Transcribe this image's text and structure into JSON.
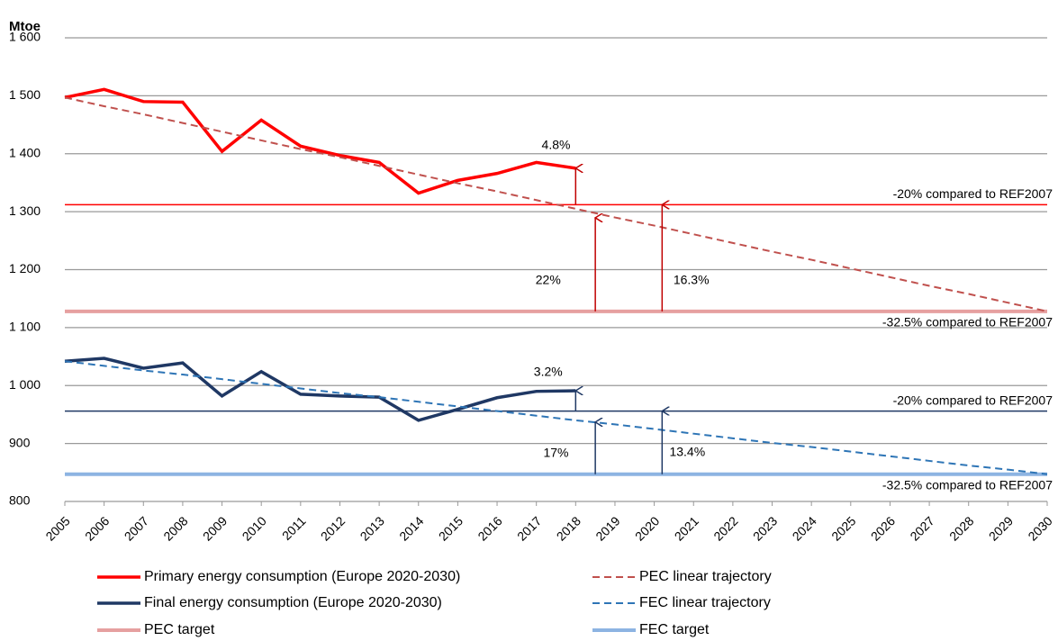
{
  "chart_data": {
    "type": "line",
    "y_label": "Mtoe",
    "categories": [
      "2005",
      "2006",
      "2007",
      "2008",
      "2009",
      "2010",
      "2011",
      "2012",
      "2013",
      "2014",
      "2015",
      "2016",
      "2017",
      "2018",
      "2019",
      "2020",
      "2021",
      "2022",
      "2023",
      "2024",
      "2025",
      "2026",
      "2027",
      "2028",
      "2029",
      "2030"
    ],
    "ylim": [
      800,
      1600
    ],
    "yticks": [
      {
        "value": 1600,
        "label": "1 600"
      },
      {
        "value": 1500,
        "label": "1 500"
      },
      {
        "value": 1400,
        "label": "1 400"
      },
      {
        "value": 1300,
        "label": "1 300"
      },
      {
        "value": 1200,
        "label": "1 200"
      },
      {
        "value": 1100,
        "label": "1 100"
      },
      {
        "value": 1000,
        "label": "1 000"
      },
      900,
      800
    ],
    "grid": true,
    "series": [
      {
        "name": "Primary energy consumption (Europe 2020-2030)",
        "color": "#ff0000",
        "dashed": false,
        "values": [
          1497,
          1511,
          1490,
          1489,
          1404,
          1458,
          1413,
          1397,
          1385,
          1332,
          1354,
          1366,
          1385,
          1375,
          null,
          null,
          null,
          null,
          null,
          null,
          null,
          null,
          null,
          null,
          null,
          null
        ]
      },
      {
        "name": "Final energy consumption (Europe 2020-2030)",
        "color": "#1f3864",
        "dashed": false,
        "values": [
          1042,
          1047,
          1030,
          1039,
          982,
          1024,
          985,
          982,
          980,
          940,
          959,
          979,
          990,
          991,
          null,
          null,
          null,
          null,
          null,
          null,
          null,
          null,
          null,
          null,
          null,
          null
        ]
      },
      {
        "name": "PEC linear trajectory",
        "color": "#c0504d",
        "dashed": true,
        "values": [
          1497,
          1482,
          1468,
          1453,
          1438,
          1423,
          1408,
          1394,
          1379,
          1364,
          1349,
          1335,
          1320,
          1305,
          1290,
          1276,
          1261,
          1246,
          1231,
          1217,
          1202,
          1187,
          1172,
          1158,
          1143,
          1128
        ]
      },
      {
        "name": "FEC linear trajectory",
        "color": "#2e75b6",
        "dashed": true,
        "values": [
          1042,
          1034,
          1026,
          1019,
          1011,
          1003,
          995,
          987,
          980,
          972,
          964,
          956,
          948,
          940,
          933,
          925,
          917,
          909,
          901,
          894,
          886,
          878,
          870,
          862,
          855,
          847
        ]
      }
    ],
    "reference_lines": [
      {
        "name": "PEC target",
        "value": 1128,
        "label": "-32.5% compared to REF2007",
        "color": "#e6a0a0"
      },
      {
        "value": 1312,
        "label": "-20% compared to REF2007",
        "color": "#ff0000"
      },
      {
        "name": "FEC target",
        "value": 847,
        "label": "-32.5% compared to REF2007",
        "color": "#8db4e2"
      },
      {
        "value": 956,
        "label": "-20% compared to REF2007",
        "color": "#1f3864"
      }
    ],
    "annotations": [
      "4.8%",
      "22%",
      "16.3%",
      "3.2%",
      "17%",
      "13.4%"
    ]
  }
}
